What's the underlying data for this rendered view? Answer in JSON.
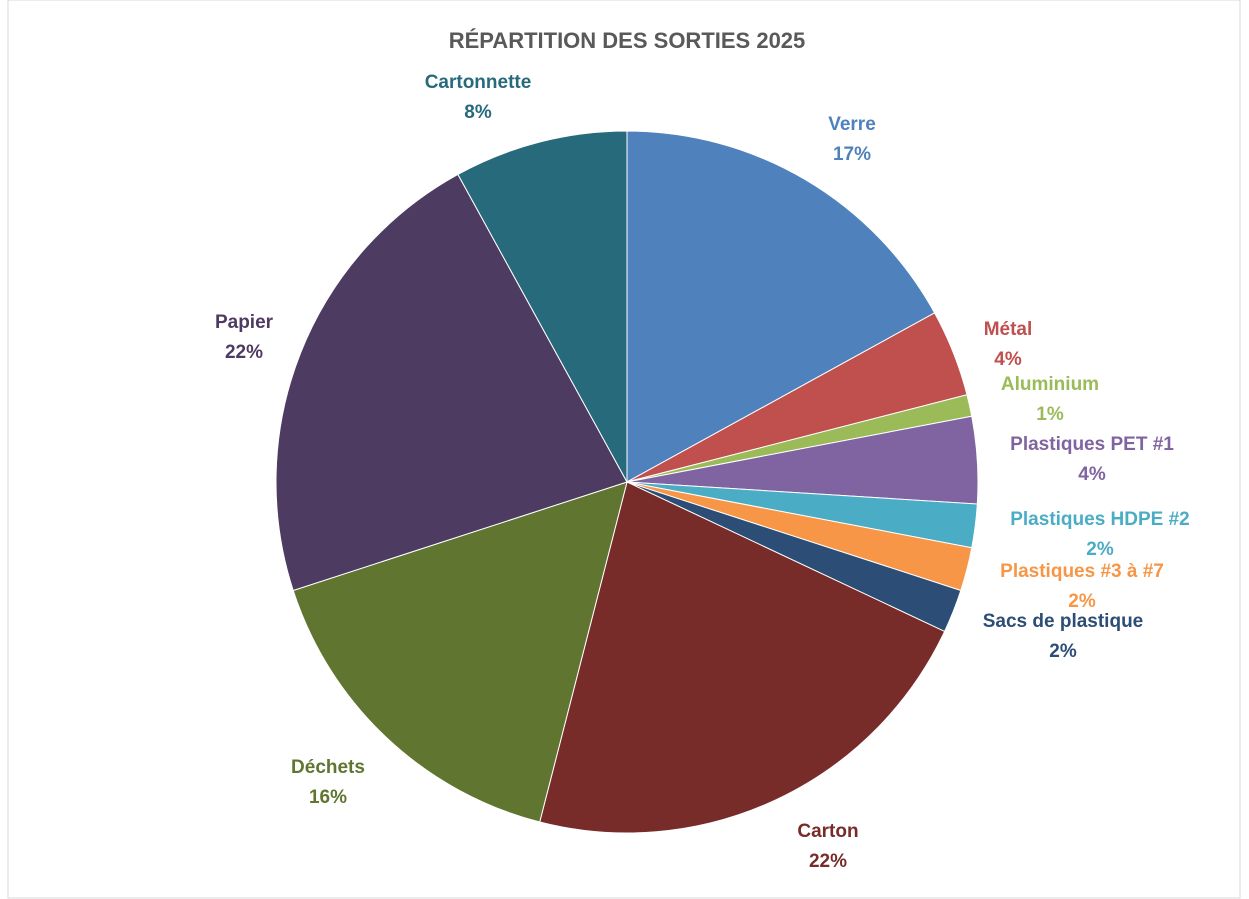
{
  "chart_data": {
    "type": "pie",
    "title": "RÉPARTITION DES SORTIES 2025",
    "categories": [
      "Verre",
      "Métal",
      "Aluminium",
      "Plastiques PET #1",
      "Plastiques HDPE #2",
      "Plastiques #3 à #7",
      "Sacs de plastique",
      "Carton",
      "Déchets",
      "Papier",
      "Cartonnette"
    ],
    "values": [
      17,
      4,
      1,
      4,
      2,
      2,
      2,
      22,
      16,
      22,
      8
    ],
    "value_labels": [
      "17%",
      "4%",
      "1%",
      "4%",
      "2%",
      "2%",
      "2%",
      "22%",
      "16%",
      "22%",
      "8%"
    ],
    "colors": [
      "#4f81bd",
      "#c0504d",
      "#9bbb59",
      "#8064a2",
      "#4bacc6",
      "#f79646",
      "#2c4d75",
      "#772c2a",
      "#5f7530",
      "#4d3b62",
      "#276a7c"
    ]
  }
}
